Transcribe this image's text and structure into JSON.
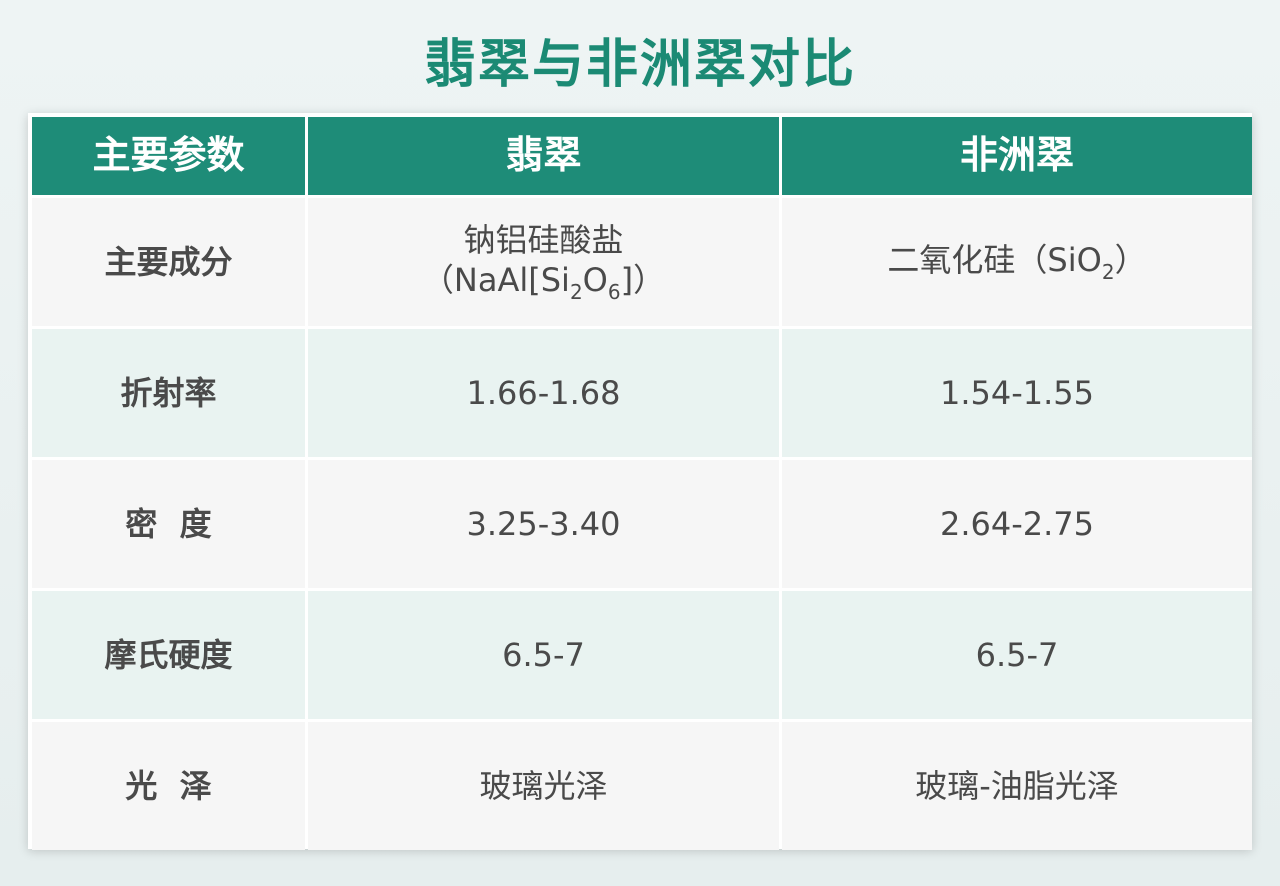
{
  "title": "翡翠与非洲翠对比",
  "headers": [
    "主要参数",
    "翡翠",
    "非洲翠"
  ],
  "rows": [
    {
      "param": "主要成分",
      "jade_line1": "钠铝硅酸盐",
      "jade_formula": {
        "pre": "（NaAl[Si",
        "s1": "2",
        "mid": "O",
        "s2": "6",
        "post": "]）"
      },
      "african_formula": {
        "pre": "二氧化硅（SiO",
        "s1": "2",
        "post": "）"
      }
    },
    {
      "param": "折射率",
      "jade": "1.66-1.68",
      "african": "1.54-1.55"
    },
    {
      "param": "密  度",
      "jade": "3.25-3.40",
      "african": "2.64-2.75"
    },
    {
      "param": "摩氏硬度",
      "jade": "6.5-7",
      "african": "6.5-7"
    },
    {
      "param": "光  泽",
      "jade": "玻璃光泽",
      "african": "玻璃-油脂光泽"
    }
  ],
  "colors": {
    "header": "#1e8c78",
    "title": "#1b8a74",
    "row_odd": "#f6f6f6",
    "row_even": "#e9f3f1"
  }
}
